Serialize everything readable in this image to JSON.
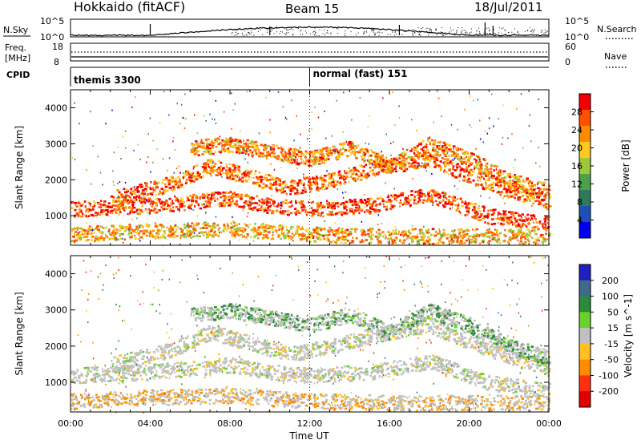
{
  "header": {
    "site": "Hokkaido (fitACF)",
    "beam": "Beam 15",
    "date": "18/Jul/2011"
  },
  "noise_panel": {
    "left_label": "N.Sky",
    "right_label": "N.Search",
    "left_ticks": [
      "10^5",
      "10^0"
    ],
    "right_ticks": [
      "10^5",
      "10^0"
    ]
  },
  "freq_panel": {
    "left_label_line1": "Freq.",
    "left_label_line2": "[MHz]",
    "right_label": "Nave",
    "left_ticks": [
      "18",
      "8"
    ],
    "right_ticks": [
      "60",
      "0"
    ]
  },
  "cpid_panel": {
    "label": "CPID",
    "modes": [
      {
        "name": "themis 3300",
        "start_hour": 0
      },
      {
        "name": "normal (fast) 151",
        "start_hour": 12
      }
    ]
  },
  "x_axis": {
    "label": "Time UT",
    "ticks": [
      "00:00",
      "04:00",
      "08:00",
      "12:00",
      "16:00",
      "20:00",
      "00:00"
    ]
  },
  "colors": {
    "power_scale": [
      "#0000ee",
      "#1f4fb4",
      "#2f7a5a",
      "#4fa04a",
      "#9cc83c",
      "#ffc820",
      "#ff8c00",
      "#ff5000",
      "#f00000"
    ],
    "velocity_scale": [
      "#2020c0",
      "#3f6a8a",
      "#2c8a3a",
      "#6bd02c",
      "#c0c0c0",
      "#ffc020",
      "#ff8c00",
      "#ff3010",
      "#e00000"
    ]
  },
  "chart_data": [
    {
      "type": "heatmap",
      "title": "",
      "ylabel": "Slant Range [km]",
      "xlabel": "",
      "ylim": [
        180,
        4500
      ],
      "xlim": [
        0,
        24
      ],
      "yticks": [
        1000,
        2000,
        3000,
        4000
      ],
      "colorbar": {
        "label": "Power [dB]",
        "ticks": [
          "4",
          "8",
          "12",
          "16",
          "20",
          "24",
          "28"
        ],
        "range": [
          0,
          30
        ]
      },
      "scatter_bands": [
        {
          "name": "near range echoes",
          "x": [
            0,
            4,
            8,
            12,
            16,
            20,
            24
          ],
          "y": [
            500,
            600,
            650,
            500,
            450,
            450,
            450
          ],
          "value": 20
        },
        {
          "name": "lower band",
          "x": [
            0,
            4,
            8,
            10,
            12,
            15,
            18,
            21,
            24
          ],
          "y": [
            1200,
            1300,
            1500,
            1300,
            1200,
            1300,
            1600,
            1000,
            800
          ],
          "value": 26
        },
        {
          "name": "middle band",
          "x": [
            2,
            5,
            7,
            9,
            11,
            13,
            15,
            18,
            21,
            24
          ],
          "y": [
            1500,
            1900,
            2400,
            2100,
            1800,
            2000,
            2300,
            2600,
            1900,
            1400
          ],
          "value": 24
        },
        {
          "name": "upper arcs",
          "x": [
            6,
            8,
            10,
            12,
            14,
            16,
            18,
            20,
            22,
            24
          ],
          "y": [
            2900,
            3000,
            2800,
            2600,
            2900,
            2400,
            3000,
            2600,
            2000,
            1700
          ],
          "value": 22
        }
      ]
    },
    {
      "type": "heatmap",
      "title": "",
      "ylabel": "Slant Range [km]",
      "xlabel": "Time UT",
      "ylim": [
        180,
        4500
      ],
      "xlim": [
        0,
        24
      ],
      "yticks": [
        1000,
        2000,
        3000,
        4000
      ],
      "colorbar": {
        "label": "Velocity [m s^-1]",
        "ticks": [
          "200",
          "100",
          "50",
          "15",
          "-15",
          "-50",
          "-100",
          "-200"
        ],
        "range": [
          -200,
          200
        ]
      },
      "scatter_bands": [
        {
          "name": "near range echoes",
          "x": [
            0,
            4,
            8,
            12,
            16,
            20,
            24
          ],
          "y": [
            500,
            600,
            650,
            500,
            450,
            450,
            450
          ],
          "value": -60
        },
        {
          "name": "lower band",
          "x": [
            0,
            4,
            8,
            10,
            12,
            15,
            18,
            21,
            24
          ],
          "y": [
            1200,
            1300,
            1500,
            1300,
            1200,
            1300,
            1600,
            1000,
            800
          ],
          "value": 0
        },
        {
          "name": "middle band",
          "x": [
            2,
            5,
            7,
            9,
            11,
            13,
            15,
            18,
            21,
            24
          ],
          "y": [
            1500,
            1900,
            2400,
            2100,
            1800,
            2000,
            2300,
            2600,
            1900,
            1400
          ],
          "value": 0
        },
        {
          "name": "upper arcs",
          "x": [
            6,
            8,
            10,
            12,
            14,
            16,
            18,
            20,
            22,
            24
          ],
          "y": [
            2900,
            3000,
            2800,
            2600,
            2900,
            2400,
            3000,
            2600,
            2000,
            1700
          ],
          "value": 40
        }
      ]
    }
  ]
}
